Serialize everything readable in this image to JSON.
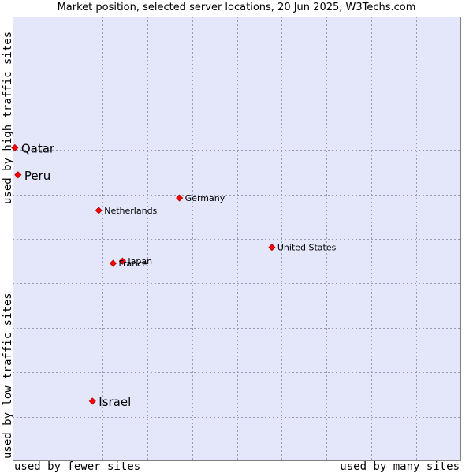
{
  "chart_data": {
    "type": "scatter",
    "title": "Market position, selected server locations, 20 Jun 2025, W3Techs.com",
    "y_axis_top_label": "used by high traffic sites",
    "y_axis_bottom_label": "used by low traffic sites",
    "x_axis_left_label": "used by fewer sites",
    "x_axis_right_label": "used by many sites",
    "xlim": [
      0,
      100
    ],
    "ylim": [
      0,
      100
    ],
    "grid": true,
    "marker_color": "#ff0000",
    "background_color": "#e4e6fa",
    "points": [
      {
        "label": "Qatar",
        "x": 0.5,
        "y": 70.5,
        "emphasis": true
      },
      {
        "label": "Peru",
        "x": 1.2,
        "y": 64.4,
        "emphasis": true
      },
      {
        "label": "Germany",
        "x": 37.2,
        "y": 59.2,
        "emphasis": false
      },
      {
        "label": "Netherlands",
        "x": 19.2,
        "y": 56.4,
        "emphasis": false
      },
      {
        "label": "United States",
        "x": 57.8,
        "y": 48.1,
        "emphasis": false
      },
      {
        "label": "Japan",
        "x": 24.5,
        "y": 45.0,
        "emphasis": false
      },
      {
        "label": "France",
        "x": 22.4,
        "y": 44.5,
        "emphasis": false
      },
      {
        "label": "Israel",
        "x": 17.8,
        "y": 13.5,
        "emphasis": true
      }
    ]
  }
}
